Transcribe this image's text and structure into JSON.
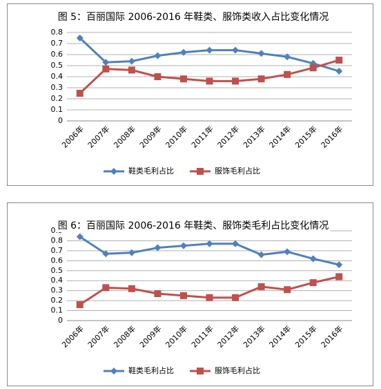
{
  "chart_data": [
    {
      "type": "line",
      "title": "图 5：百丽国际 2006-2016 年鞋类、服饰类收入占比变化情况",
      "categories": [
        "2006年",
        "2007年",
        "2008年",
        "2009年",
        "2010年",
        "2011年",
        "2012年",
        "2013年",
        "2014年",
        "2015年",
        "2016年"
      ],
      "series": [
        {
          "name": "鞋类毛利占比",
          "color": "#4f81bd",
          "values": [
            0.75,
            0.53,
            0.54,
            0.59,
            0.62,
            0.64,
            0.64,
            0.61,
            0.58,
            0.52,
            0.45
          ]
        },
        {
          "name": "服饰毛利占比",
          "color": "#c0504d",
          "values": [
            0.25,
            0.47,
            0.46,
            0.4,
            0.38,
            0.36,
            0.36,
            0.38,
            0.42,
            0.48,
            0.55
          ]
        }
      ],
      "ylim": [
        0,
        0.8
      ],
      "yticks": [
        0,
        0.1,
        0.2,
        0.3,
        0.4,
        0.5,
        0.6,
        0.7,
        0.8
      ],
      "grid": true,
      "legend": "bottom"
    },
    {
      "type": "line",
      "title": "图 6：百丽国际 2006-2016 年鞋类、服饰类毛利占比变化情况",
      "categories": [
        "2006年",
        "2007年",
        "2008年",
        "2009年",
        "2010年",
        "2011年",
        "2012年",
        "2013年",
        "2014年",
        "2015年",
        "2016年"
      ],
      "series": [
        {
          "name": "鞋类毛利占比",
          "color": "#4f81bd",
          "values": [
            0.84,
            0.67,
            0.68,
            0.73,
            0.75,
            0.77,
            0.77,
            0.66,
            0.69,
            0.62,
            0.56
          ]
        },
        {
          "name": "服饰毛利占比",
          "color": "#c0504d",
          "values": [
            0.16,
            0.33,
            0.32,
            0.27,
            0.25,
            0.23,
            0.23,
            0.34,
            0.31,
            0.38,
            0.44
          ]
        }
      ],
      "ylim": [
        0,
        0.9
      ],
      "yticks": [
        0,
        0.1,
        0.2,
        0.3,
        0.4,
        0.5,
        0.6,
        0.7,
        0.8,
        0.9
      ],
      "grid": true,
      "legend": "bottom"
    }
  ]
}
